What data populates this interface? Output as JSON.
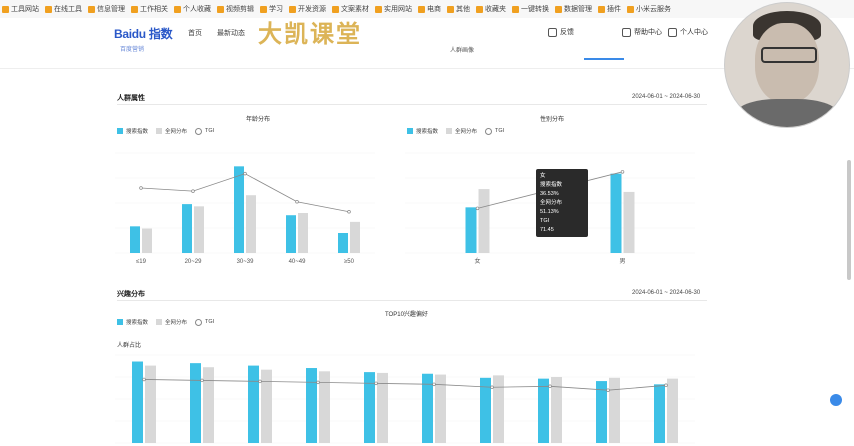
{
  "bookmarks": [
    "工具网站",
    "在线工具",
    "信息管理",
    "工作相关",
    "个人收藏",
    "视频剪辑",
    "学习",
    "开发资源",
    "文案素材",
    "实用网站",
    "电商",
    "其他",
    "收藏夹",
    "一键转换",
    "数据管理",
    "插件",
    "小米云服务"
  ],
  "header": {
    "logo": "Baidu 指数",
    "logo_sub": "百度营销",
    "watermark": "大凯课堂",
    "nav": [
      "首页",
      "最新动态"
    ],
    "right_nav": [
      "反馈",
      "帮助中心",
      "个人中心"
    ],
    "subtab": "人群画像"
  },
  "section1": {
    "title": "人群属性",
    "date_range": "2024-06-01 ~ 2024-06-30"
  },
  "age_chart": {
    "title": "年龄分布",
    "legend": [
      "搜索指数",
      "全网分布",
      "TGI"
    ]
  },
  "gender_chart": {
    "title": "性别分布",
    "legend": [
      "搜索指数",
      "全网分布",
      "TGI"
    ]
  },
  "tooltip": {
    "title": "女",
    "line1_label": "搜索指数",
    "line1_value": "36.53%",
    "line2_label": "全网分布",
    "line2_value": "51.13%",
    "line3_label": "TGI",
    "line3_value": "71.45"
  },
  "section2": {
    "title": "兴趣分布",
    "date_range": "2024-06-01 ~ 2024-06-30"
  },
  "interest_chart": {
    "title": "TOP10兴趣偏好",
    "legend": [
      "搜索指数",
      "全网分布",
      "TGI"
    ],
    "ylabel": "人群占比"
  },
  "colors": {
    "bar_primary": "#3ec1e6",
    "bar_secondary": "#d8d8d8",
    "tgi_line": "#8a8a8a",
    "accent": "#3a8ae8"
  },
  "chart_data": [
    {
      "type": "bar",
      "title": "年龄分布",
      "categories": [
        "≤19",
        "20~29",
        "30~39",
        "40~49",
        "≥50"
      ],
      "series": [
        {
          "name": "搜索指数",
          "values": [
            12,
            22,
            39,
            17,
            9
          ]
        },
        {
          "name": "全网分布",
          "values": [
            11,
            21,
            26,
            18,
            14
          ]
        },
        {
          "name": "TGI",
          "values": [
            104,
            99,
            127,
            82,
            66
          ]
        }
      ]
    },
    {
      "type": "bar",
      "title": "性别分布",
      "categories": [
        "女",
        "男"
      ],
      "series": [
        {
          "name": "搜索指数",
          "values": [
            36.53,
            63.47
          ]
        },
        {
          "name": "全网分布",
          "values": [
            51.13,
            48.87
          ]
        },
        {
          "name": "TGI",
          "values": [
            71.45,
            129.88
          ]
        }
      ]
    },
    {
      "type": "bar",
      "title": "TOP10兴趣偏好",
      "categories": [
        "",
        "",
        "",
        "",
        "",
        "",
        "",
        "",
        "",
        ""
      ],
      "series": [
        {
          "name": "搜索指数",
          "values": [
            100,
            98,
            95,
            92,
            87,
            85,
            80,
            79,
            76,
            72
          ]
        },
        {
          "name": "全网分布",
          "values": [
            95,
            93,
            90,
            88,
            86,
            84,
            83,
            81,
            80,
            79
          ]
        },
        {
          "name": "TGI",
          "values": [
            105,
            104,
            103,
            102,
            101,
            100,
            97,
            98,
            94,
            99
          ]
        }
      ]
    }
  ]
}
